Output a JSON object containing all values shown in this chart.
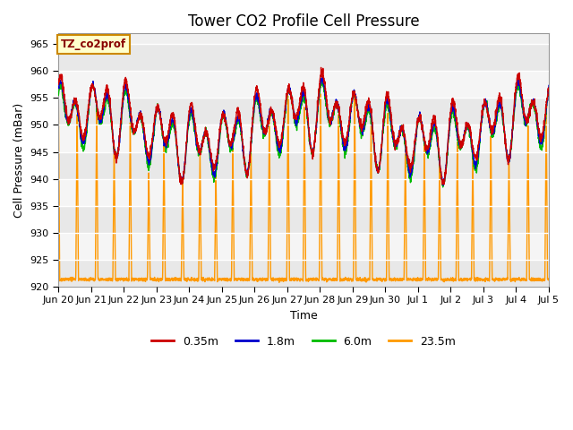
{
  "title": "Tower CO2 Profile Cell Pressure",
  "ylabel": "Cell Pressure (mBar)",
  "xlabel": "Time",
  "legend_label": "TZ_co2prof",
  "legend_entries": [
    "0.35m",
    "1.8m",
    "6.0m",
    "23.5m"
  ],
  "line_colors": [
    "#cc0000",
    "#0000cc",
    "#00bb00",
    "#ff9900"
  ],
  "ylim": [
    920,
    967
  ],
  "yticks": [
    920,
    925,
    930,
    935,
    940,
    945,
    950,
    955,
    960,
    965
  ],
  "fig_bg": "#ffffff",
  "plot_bg": "#f0f0f0",
  "annotation_bg": "#ffffcc",
  "annotation_border": "#cc8800",
  "title_fontsize": 12,
  "axis_fontsize": 9,
  "tick_fontsize": 8,
  "legend_fontsize": 9,
  "line_width": 1.0
}
